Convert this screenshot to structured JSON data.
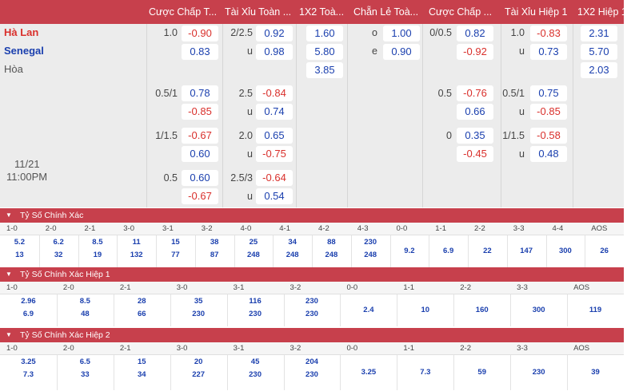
{
  "headers": [
    "Cược Chấp T...",
    "Tài Xỉu Toàn ...",
    "1X2 Toà...",
    "Chẵn Lẻ Toà...",
    "Cược Chấp ...",
    "Tài Xỉu Hiệp 1",
    "1X2 Hiệp 1"
  ],
  "teams": {
    "home": "Hà Lan",
    "away": "Senegal",
    "draw": "Hòa"
  },
  "match": {
    "date": "11/21",
    "time": "11:00PM"
  },
  "row1": {
    "hc_full": "1.0",
    "hc_full_home": "-0.90",
    "hc_full_away": "0.83",
    "ou_full": "2/2.5",
    "ou_full_over": "0.92",
    "ou_full_u": "u",
    "ou_full_under": "0.98",
    "x12_home": "1.60",
    "x12_away": "5.80",
    "x12_draw": "3.85",
    "oe_o": "o",
    "oe_odd": "1.00",
    "oe_e": "e",
    "oe_even": "0.90",
    "hc_h1": "0/0.5",
    "hc_h1_home": "0.82",
    "hc_h1_away": "-0.92",
    "ou_h1": "1.0",
    "ou_h1_over": "-0.83",
    "ou_h1_u": "u",
    "ou_h1_under": "0.73",
    "x12h1_home": "2.31",
    "x12h1_away": "5.70",
    "x12h1_draw": "2.03"
  },
  "row2": {
    "hc_full": "0.5/1",
    "hc_full_home": "0.78",
    "hc_full_away": "-0.85",
    "ou_full": "2.5",
    "ou_full_over": "-0.84",
    "ou_full_u": "u",
    "ou_full_under": "0.74",
    "hc_h1": "0.5",
    "hc_h1_home": "-0.76",
    "hc_h1_away": "0.66",
    "ou_h1": "0.5/1",
    "ou_h1_over": "0.75",
    "ou_h1_u": "u",
    "ou_h1_under": "-0.85"
  },
  "row3": {
    "hc_full": "1/1.5",
    "hc_full_home": "-0.67",
    "hc_full_away": "0.60",
    "ou_full": "2.0",
    "ou_full_over": "0.65",
    "ou_full_u": "u",
    "ou_full_under": "-0.75",
    "hc_h1": "0",
    "hc_h1_home": "0.35",
    "hc_h1_away": "-0.45",
    "ou_h1": "1/1.5",
    "ou_h1_over": "-0.58",
    "ou_h1_u": "u",
    "ou_h1_under": "0.48"
  },
  "row4": {
    "hc_full": "0.5",
    "hc_full_home": "0.60",
    "hc_full_away": "-0.67",
    "ou_full": "2.5/3",
    "ou_full_over": "-0.64",
    "ou_full_u": "u",
    "ou_full_under": "0.54"
  },
  "cs_full": {
    "title": "Tỷ Số Chính Xác",
    "heads": [
      "1-0",
      "2-0",
      "2-1",
      "3-0",
      "3-1",
      "3-2",
      "4-0",
      "4-1",
      "4-2",
      "4-3",
      "0-0",
      "1-1",
      "2-2",
      "3-3",
      "4-4",
      "AOS"
    ],
    "top": [
      "5.2",
      "6.2",
      "8.5",
      "11",
      "15",
      "38",
      "25",
      "34",
      "88",
      "230"
    ],
    "bottom": [
      "13",
      "32",
      "19",
      "132",
      "77",
      "87",
      "248",
      "248",
      "248",
      "248"
    ],
    "single": [
      "9.2",
      "6.9",
      "22",
      "147",
      "300",
      "26"
    ]
  },
  "cs_h1": {
    "title": "Tỷ Số Chính Xác Hiệp 1",
    "heads": [
      "1-0",
      "2-0",
      "2-1",
      "3-0",
      "3-1",
      "3-2",
      "0-0",
      "1-1",
      "2-2",
      "3-3",
      "AOS"
    ],
    "top": [
      "2.96",
      "8.5",
      "28",
      "35",
      "116",
      "230"
    ],
    "bottom": [
      "6.9",
      "48",
      "66",
      "230",
      "230",
      "230"
    ],
    "single": [
      "2.4",
      "10",
      "160",
      "300",
      "119"
    ]
  },
  "cs_h2": {
    "title": "Tỷ Số Chính Xác Hiệp 2",
    "heads": [
      "1-0",
      "2-0",
      "2-1",
      "3-0",
      "3-1",
      "3-2",
      "0-0",
      "1-1",
      "2-2",
      "3-3",
      "AOS"
    ],
    "top": [
      "3.25",
      "6.5",
      "15",
      "20",
      "45",
      "204"
    ],
    "bottom": [
      "7.3",
      "33",
      "34",
      "227",
      "230",
      "230"
    ],
    "single": [
      "3.25",
      "7.3",
      "59",
      "230",
      "39"
    ]
  },
  "colors": {
    "accent": "#c7404c",
    "positive": "#1a3fae",
    "negative": "#d9302c",
    "panel": "#ececec"
  }
}
